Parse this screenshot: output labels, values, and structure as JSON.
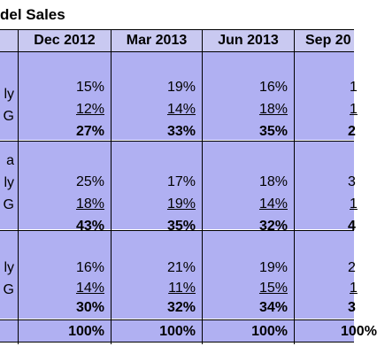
{
  "title": "del Sales",
  "columns": [
    "Dec 2012",
    "Mar 2013",
    "Jun 2013",
    "Sep 20"
  ],
  "groups": [
    {
      "labels": [
        "ly",
        "G"
      ],
      "rows": [
        [
          "15%",
          "19%",
          "16%",
          "1"
        ],
        [
          "12%",
          "14%",
          "18%",
          "1"
        ]
      ],
      "totals": [
        "27%",
        "33%",
        "35%",
        "2"
      ]
    },
    {
      "labels": [
        "a",
        "ly",
        "G"
      ],
      "rows": [
        [
          "25%",
          "17%",
          "18%",
          "3"
        ],
        [
          "18%",
          "19%",
          "14%",
          "1"
        ]
      ],
      "totals": [
        "43%",
        "35%",
        "32%",
        "4"
      ]
    },
    {
      "labels": [
        "ly",
        "G"
      ],
      "rows": [
        [
          "16%",
          "21%",
          "19%",
          "2"
        ],
        [
          "14%",
          "11%",
          "15%",
          "1"
        ]
      ],
      "totals": [
        "30%",
        "32%",
        "34%",
        "3"
      ]
    }
  ],
  "grand_totals": [
    "100%",
    "100%",
    "100%",
    "100%"
  ],
  "colors": {
    "header_bg": "#c9c9f1",
    "cell_bg": "#b0b0f2",
    "border": "#000000"
  }
}
